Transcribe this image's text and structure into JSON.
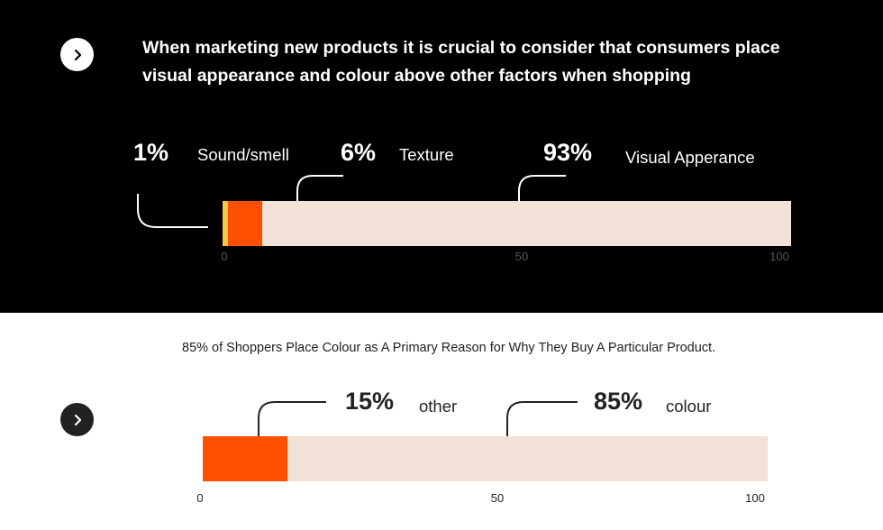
{
  "top": {
    "headline_line1": "When marketing new products it is crucial to consider that consumers place",
    "headline_line2": "visual appearance and colour above other factors when shopping",
    "icon": "chevron-right-icon"
  },
  "bottom": {
    "caption": "85% of Shoppers Place Colour as A Primary Reason for Why They Buy A Particular Product.",
    "icon": "chevron-right-icon"
  },
  "chart_data": [
    {
      "type": "bar",
      "orientation": "horizontal-stacked",
      "categories": [
        "Sound/smell",
        "Texture",
        "Visual Apperance"
      ],
      "values": [
        1,
        6,
        93
      ],
      "labels": [
        "1%",
        "6%",
        "93%"
      ],
      "colors": [
        "#f7c948",
        "#ff4f00",
        "#f1e1d7"
      ],
      "xlim": [
        0,
        100
      ],
      "ticks": [
        "0",
        "50",
        "100"
      ]
    },
    {
      "type": "bar",
      "orientation": "horizontal-stacked",
      "categories": [
        "other",
        "colour"
      ],
      "values": [
        15,
        85
      ],
      "labels": [
        "15%",
        "85%"
      ],
      "colors": [
        "#ff4f00",
        "#f1e1d7"
      ],
      "xlim": [
        0,
        100
      ],
      "ticks": [
        "0",
        "50",
        "100"
      ]
    }
  ]
}
